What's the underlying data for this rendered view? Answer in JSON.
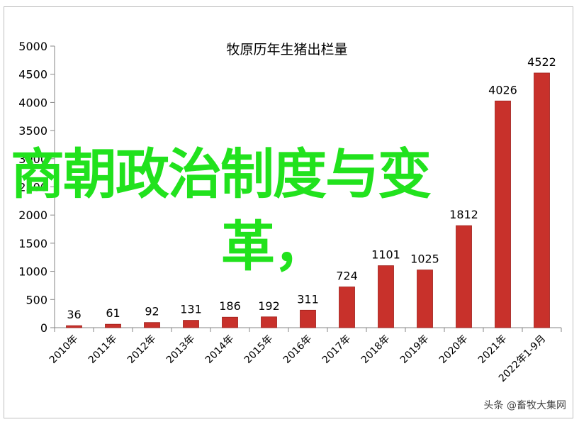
{
  "chart_data": {
    "type": "bar",
    "title": "牧原历年生猪出栏量",
    "xlabel": "",
    "ylabel": "",
    "categories": [
      "2010年",
      "2011年",
      "2012年",
      "2013年",
      "2014年",
      "2015年",
      "2016年",
      "2017年",
      "2018年",
      "2019年",
      "2020年",
      "2021年",
      "2022年1-9月"
    ],
    "values": [
      36,
      61,
      92,
      131,
      186,
      192,
      311,
      724,
      1101,
      1025,
      1812,
      4026,
      4522
    ],
    "data_labels": [
      "36",
      "61",
      "92",
      "131",
      "186",
      "192",
      "311",
      "724",
      "1101",
      "1025",
      "1812",
      "4026",
      "4522"
    ],
    "yticks": [
      "0",
      "500",
      "1000",
      "1500",
      "2000",
      "2500",
      "3000",
      "3500",
      "4000",
      "4500",
      "5000"
    ],
    "ylim": [
      0,
      5000
    ],
    "grid": false,
    "legend": "none",
    "bar_color": "#c8312b",
    "bar_edge_color": "#9e1f1a"
  },
  "overlay": {
    "line1": "商朝政治制度与变",
    "line2": "革，",
    "color": "#21e21d"
  },
  "watermark": "头条 @畜牧大集网"
}
